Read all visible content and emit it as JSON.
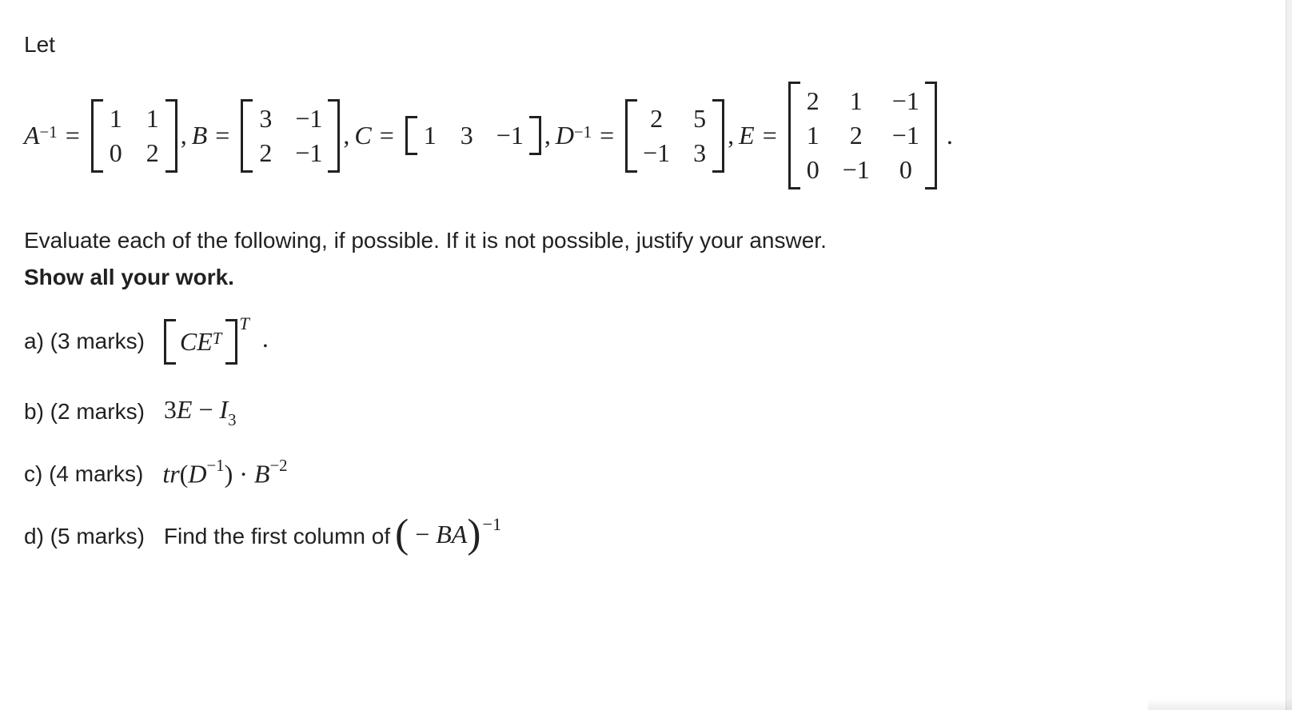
{
  "colors": {
    "text": "#212121",
    "background": "#ffffff"
  },
  "typography": {
    "body_font": "Arial, Helvetica, sans-serif",
    "math_font": "Times New Roman, Times, serif",
    "body_size_pt": 21,
    "math_size_pt": 24
  },
  "intro": "Let",
  "matrices": {
    "A_inv": {
      "name": "A",
      "exponent": "−1",
      "rows": [
        [
          "1",
          "1"
        ],
        [
          "0",
          "2"
        ]
      ],
      "cols": 2
    },
    "B": {
      "name": "B",
      "rows": [
        [
          "3",
          "−1"
        ],
        [
          "2",
          "−1"
        ]
      ],
      "cols": 2
    },
    "C": {
      "name": "C",
      "rows": [
        [
          "1",
          "3",
          "−1"
        ]
      ],
      "cols": 3
    },
    "D_inv": {
      "name": "D",
      "exponent": "−1",
      "rows": [
        [
          "2",
          "5"
        ],
        [
          "−1",
          "3"
        ]
      ],
      "cols": 2
    },
    "E": {
      "name": "E",
      "rows": [
        [
          "2",
          "1",
          "−1"
        ],
        [
          "1",
          "2",
          "−1"
        ],
        [
          "0",
          "−1",
          "0"
        ]
      ],
      "cols": 3
    }
  },
  "row_terminator": ".",
  "instruction": "Evaluate each of the following, if possible. If it is not possible, justify your answer.",
  "show_work": "Show all your work.",
  "parts": {
    "a": {
      "label": "a) (3 marks)",
      "expr_prefix": "",
      "inner": {
        "C": "C",
        "E": "E",
        "ET_sup": "T"
      },
      "outer_sup": "T",
      "trailing": "."
    },
    "b": {
      "label": "b) (2 marks)",
      "expr": {
        "coef": "3",
        "E": "E",
        "minus": " − ",
        "I": "I",
        "I_sub": "3"
      }
    },
    "c": {
      "label": "c) (4 marks)",
      "expr": {
        "tr": "tr",
        "D": "D",
        "D_sup": "−1",
        "dot": " · ",
        "B": "B",
        "B_sup": "−2"
      }
    },
    "d": {
      "label": "d) (5 marks)",
      "prefix": "Find the first column of ",
      "expr": {
        "minus": " − ",
        "B": "B",
        "A": "A"
      },
      "outer_sup": "−1"
    }
  }
}
